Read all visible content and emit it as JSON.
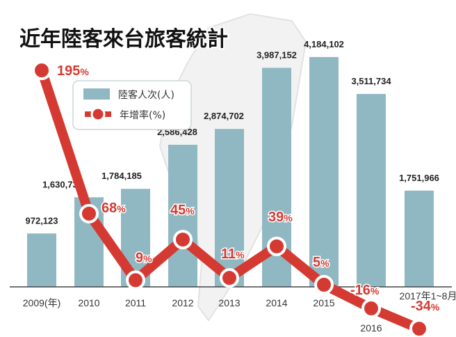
{
  "chart_data": {
    "type": "bar",
    "title": "近年陸客來台旅客統計",
    "categories": [
      "2009(年)",
      "2010",
      "2011",
      "2012",
      "2013",
      "2014",
      "2015",
      "2016",
      "2017年1~8月"
    ],
    "series": [
      {
        "name": "陸客人次(人)",
        "type": "bar",
        "color": "#8fb8c2",
        "values": [
          972123,
          1630735,
          1784185,
          2586428,
          2874702,
          3987152,
          4184102,
          3511734,
          1751966
        ],
        "labels": [
          "972,123",
          "1,630,735",
          "1,784,185",
          "2,586,428",
          "2,874,702",
          "3,987,152",
          "4,184,102",
          "3,511,734",
          "1,751,966"
        ]
      },
      {
        "name": "年增率(%)",
        "type": "line",
        "color": "#d43a32",
        "values": [
          195,
          68,
          9,
          45,
          11,
          39,
          5,
          -16,
          -34
        ],
        "labels": [
          "195",
          "68",
          "9",
          "45",
          "11",
          "39",
          "5",
          "-16",
          "-34"
        ],
        "unit": "%"
      }
    ],
    "legend": "top-left",
    "grid": false
  }
}
